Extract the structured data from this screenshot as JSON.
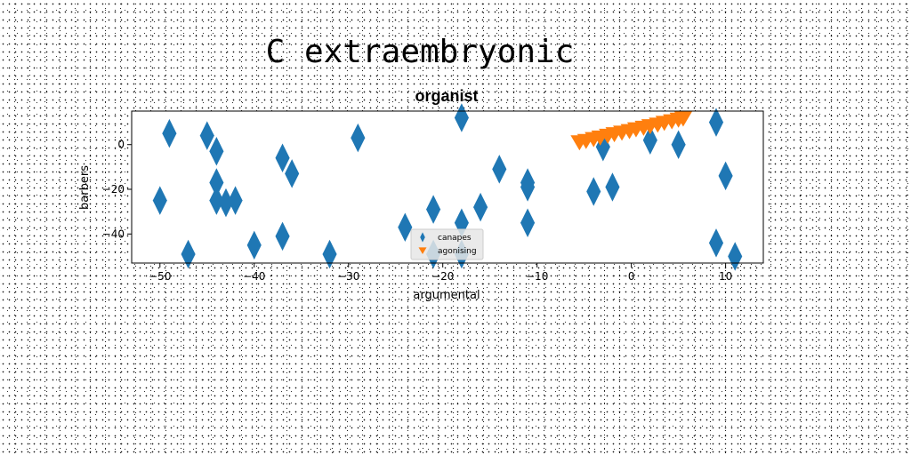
{
  "figure": {
    "supertitle": "C extraembryonic"
  },
  "chart_data": {
    "type": "scatter",
    "title": "organist",
    "xlabel": "argumental",
    "ylabel": "barbers",
    "xlim": [
      -53,
      14
    ],
    "ylim": [
      -53,
      15
    ],
    "xticks": [
      -50,
      -40,
      -30,
      -20,
      -10,
      0,
      10
    ],
    "yticks": [
      -40,
      -20,
      0
    ],
    "grid": false,
    "legend_position": "lower-center",
    "series": [
      {
        "name": "canapes",
        "marker": "thin-diamond",
        "color": "#1f77b4",
        "points": [
          [
            -50,
            -25
          ],
          [
            -49,
            5
          ],
          [
            -47,
            -49
          ],
          [
            -45,
            4
          ],
          [
            -44,
            -3
          ],
          [
            -44,
            -17
          ],
          [
            -44,
            -25
          ],
          [
            -43,
            -26
          ],
          [
            -42,
            -25
          ],
          [
            -40,
            -45
          ],
          [
            -37,
            -6
          ],
          [
            -37,
            -41
          ],
          [
            -36,
            -13
          ],
          [
            -32,
            -49
          ],
          [
            -29,
            3
          ],
          [
            -24,
            -37
          ],
          [
            -21,
            -29
          ],
          [
            -21,
            -49
          ],
          [
            -18,
            12
          ],
          [
            -18,
            -35
          ],
          [
            -18,
            -49
          ],
          [
            -16,
            -28
          ],
          [
            -14,
            -11
          ],
          [
            -11,
            -17
          ],
          [
            -11,
            -19
          ],
          [
            -11,
            -35
          ],
          [
            -4,
            -21
          ],
          [
            -3,
            -1
          ],
          [
            -2,
            -19
          ],
          [
            2,
            2
          ],
          [
            5,
            0
          ],
          [
            9,
            10
          ],
          [
            9,
            -44
          ],
          [
            10,
            -14
          ],
          [
            11,
            -50
          ]
        ]
      },
      {
        "name": "agonising",
        "marker": "triangle-down",
        "color": "#ff7f0e",
        "points": [
          [
            -5.5,
            1
          ],
          [
            -4.8,
            1.6
          ],
          [
            -4,
            2.4
          ],
          [
            -3.3,
            3.1
          ],
          [
            -2.5,
            3.9
          ],
          [
            -1.8,
            4.6
          ],
          [
            -1,
            5.3
          ],
          [
            -0.2,
            6
          ],
          [
            0.5,
            6.8
          ],
          [
            1.3,
            7.5
          ],
          [
            2,
            8.2
          ],
          [
            2.8,
            8.9
          ],
          [
            3.5,
            9.7
          ],
          [
            4.3,
            10.4
          ],
          [
            5,
            11.1
          ],
          [
            5.5,
            11.6
          ]
        ]
      }
    ]
  }
}
